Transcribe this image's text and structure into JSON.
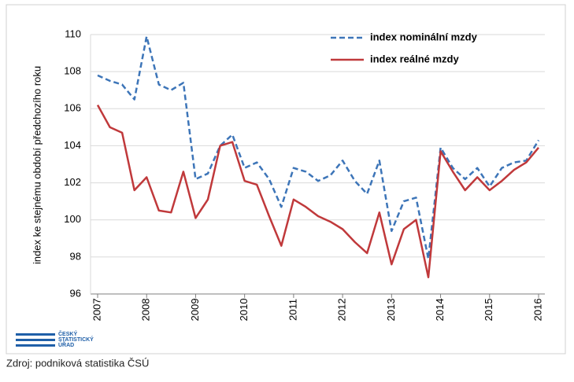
{
  "chart_data": {
    "type": "line",
    "y_label": "index ke stejnému období předchozího roku",
    "categories": [
      "2007",
      null,
      null,
      null,
      "2008",
      null,
      null,
      null,
      "2009",
      null,
      null,
      null,
      "2010",
      null,
      null,
      null,
      "2011",
      null,
      null,
      null,
      "2012",
      null,
      null,
      null,
      "2013",
      null,
      null,
      null,
      "2014",
      null,
      null,
      null,
      "2015",
      null,
      null,
      null,
      "2016"
    ],
    "series": [
      {
        "name": "index nominální mzdy",
        "color": "#3d75b8",
        "style": "dashed",
        "values": [
          107.8,
          107.5,
          107.3,
          106.5,
          109.9,
          107.3,
          107.0,
          107.4,
          102.2,
          102.5,
          104.0,
          104.6,
          102.8,
          103.1,
          102.2,
          100.7,
          102.8,
          102.6,
          102.1,
          102.4,
          103.2,
          102.1,
          101.4,
          103.2,
          99.4,
          101.0,
          101.2,
          97.9,
          103.9,
          102.8,
          102.2,
          102.8,
          101.8,
          102.8,
          103.1,
          103.2,
          104.3
        ]
      },
      {
        "name": "index reálné mzdy",
        "color": "#c0393b",
        "style": "solid",
        "values": [
          106.2,
          105.0,
          104.7,
          101.6,
          102.3,
          100.5,
          100.4,
          102.6,
          100.1,
          101.1,
          104.0,
          104.2,
          102.1,
          101.9,
          100.2,
          98.6,
          101.1,
          100.7,
          100.2,
          99.9,
          99.5,
          98.8,
          98.2,
          100.4,
          97.6,
          99.5,
          100.0,
          96.9,
          103.7,
          102.6,
          101.6,
          102.3,
          101.6,
          102.1,
          102.7,
          103.1,
          103.9
        ]
      }
    ],
    "ylim": [
      96,
      110
    ],
    "yticks": [
      96,
      98,
      100,
      102,
      104,
      106,
      108,
      110
    ],
    "grid": true
  },
  "logo": [
    "ČESKÝ",
    "STATISTICKÝ",
    "ÚŘAD"
  ],
  "source": "Zdroj: podniková statistika ČSÚ"
}
